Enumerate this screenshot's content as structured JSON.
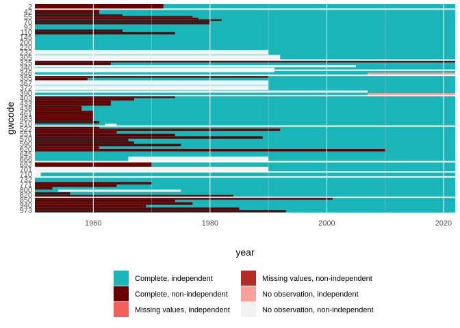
{
  "chart_data": {
    "type": "heatmap",
    "xlabel": "year",
    "ylabel": "gwcode",
    "xlim": [
      1950,
      2022
    ],
    "x_ticks": [
      "1960",
      "1980",
      "2000",
      "2020"
    ],
    "y_ticks": [
      "2",
      "42",
      "55",
      "70",
      "93",
      "110",
      "145",
      "200",
      "220",
      "232",
      "305",
      "325",
      "340",
      "346",
      "355",
      "367",
      "372",
      "390",
      "403",
      "433",
      "438",
      "461",
      "483",
      "510",
      "522",
      "551",
      "570",
      "590",
      "620",
      "645",
      "666",
      "692",
      "701",
      "710",
      "732",
      "771",
      "800",
      "820",
      "850",
      "940",
      "973"
    ],
    "legend": {
      "position": "bottom",
      "items": [
        {
          "label": "Complete, independent",
          "color": "#1ab5b8"
        },
        {
          "label": "Complete, non-independent",
          "color": "#6b0000"
        },
        {
          "label": "Missing values, independent",
          "color": "#f5605a"
        },
        {
          "label": "Missing values, non-independent",
          "color": "#b22b27"
        },
        {
          "label": "No observation, independent",
          "color": "#fba09b"
        },
        {
          "label": "No observation, non-independent",
          "color": "#f2f2f2"
        }
      ]
    },
    "background_status": "Complete, independent",
    "separators": [
      "2",
      "305",
      "340",
      "346",
      "390",
      "510",
      "666",
      "701",
      "710",
      "820"
    ],
    "segments": [
      {
        "code": "2",
        "start": 1950,
        "end": 1972,
        "status": "Complete, non-independent"
      },
      {
        "code": "42",
        "start": 1950,
        "end": 1961,
        "status": "Complete, non-independent"
      },
      {
        "code": "55",
        "start": 1950,
        "end": 1965,
        "status": "Complete, non-independent"
      },
      {
        "code": "55",
        "start": 1950,
        "end": 1977,
        "status": "Complete, non-independent"
      },
      {
        "code": "55",
        "start": 1950,
        "end": 1978,
        "status": "Complete, non-independent"
      },
      {
        "code": "70",
        "start": 1950,
        "end": 1982,
        "status": "Complete, non-independent"
      },
      {
        "code": "70",
        "start": 1950,
        "end": 1980,
        "status": "Complete, non-independent"
      },
      {
        "code": "70",
        "start": 1950,
        "end": 1980,
        "status": "Complete, non-independent"
      },
      {
        "code": "110",
        "start": 1950,
        "end": 1965,
        "status": "Complete, non-independent"
      },
      {
        "code": "110",
        "start": 1950,
        "end": 1974,
        "status": "Complete, non-independent"
      },
      {
        "code": "232",
        "start": 1950,
        "end": 1990,
        "status": "No observation, non-independent"
      },
      {
        "code": "305",
        "start": 1950,
        "end": 1992,
        "status": "No observation, non-independent"
      },
      {
        "code": "325",
        "start": 1950,
        "end": 2022,
        "status": "Complete, non-independent"
      },
      {
        "code": "325",
        "start": 1950,
        "end": 1963,
        "status": "Complete, non-independent"
      },
      {
        "code": "340",
        "start": 1950,
        "end": 2005,
        "status": "No observation, non-independent"
      },
      {
        "code": "340",
        "start": 1950,
        "end": 1991,
        "status": "No observation, non-independent"
      },
      {
        "code": "346",
        "start": 1950,
        "end": 1991,
        "status": "No observation, non-independent"
      },
      {
        "code": "346",
        "start": 2007,
        "end": 2022,
        "status": "No observation, independent"
      },
      {
        "code": "355",
        "start": 1950,
        "end": 1990,
        "status": "Complete, non-independent"
      },
      {
        "code": "355",
        "start": 1950,
        "end": 1959,
        "status": "Complete, non-independent"
      },
      {
        "code": "367",
        "start": 1950,
        "end": 1990,
        "status": "No observation, non-independent"
      },
      {
        "code": "372",
        "start": 1950,
        "end": 1990,
        "status": "No observation, non-independent"
      },
      {
        "code": "390",
        "start": 1950,
        "end": 2007,
        "status": "No observation, non-independent"
      },
      {
        "code": "390",
        "start": 2007,
        "end": 2022,
        "status": "No observation, independent"
      },
      {
        "code": "403",
        "start": 1950,
        "end": 1974,
        "status": "Complete, non-independent"
      },
      {
        "code": "403",
        "start": 1950,
        "end": 1967,
        "status": "Complete, non-independent"
      },
      {
        "code": "433",
        "start": 1950,
        "end": 1963,
        "status": "Complete, non-independent"
      },
      {
        "code": "438",
        "start": 1950,
        "end": 1958,
        "status": "Complete, non-independent"
      },
      {
        "code": "461",
        "start": 1950,
        "end": 1960,
        "status": "Complete, non-independent"
      },
      {
        "code": "483",
        "start": 1950,
        "end": 1960,
        "status": "Complete, non-independent"
      },
      {
        "code": "510",
        "start": 1950,
        "end": 1961,
        "status": "Complete, non-independent"
      },
      {
        "code": "510",
        "start": 1962,
        "end": 1964,
        "status": "No observation, non-independent"
      },
      {
        "code": "522",
        "start": 1950,
        "end": 1961,
        "status": "Complete, non-independent"
      },
      {
        "code": "522",
        "start": 1950,
        "end": 1992,
        "status": "Complete, non-independent"
      },
      {
        "code": "551",
        "start": 1950,
        "end": 1964,
        "status": "Complete, non-independent"
      },
      {
        "code": "551",
        "start": 1950,
        "end": 1974,
        "status": "Complete, non-independent"
      },
      {
        "code": "570",
        "start": 1950,
        "end": 1989,
        "status": "Complete, non-independent"
      },
      {
        "code": "570",
        "start": 1950,
        "end": 1966,
        "status": "Complete, non-independent"
      },
      {
        "code": "590",
        "start": 1950,
        "end": 1967,
        "status": "Complete, non-independent"
      },
      {
        "code": "590",
        "start": 1950,
        "end": 1975,
        "status": "Complete, non-independent"
      },
      {
        "code": "620",
        "start": 1950,
        "end": 1961,
        "status": "Complete, non-independent"
      },
      {
        "code": "620",
        "start": 1950,
        "end": 2010,
        "status": "Complete, non-independent"
      },
      {
        "code": "666",
        "start": 1966,
        "end": 1990,
        "status": "No observation, non-independent"
      },
      {
        "code": "692",
        "start": 1950,
        "end": 1970,
        "status": "Complete, non-independent"
      },
      {
        "code": "701",
        "start": 1950,
        "end": 1990,
        "status": "No observation, non-independent"
      },
      {
        "code": "710",
        "start": 1950,
        "end": 1951,
        "status": "No observation, non-independent"
      },
      {
        "code": "771",
        "start": 1950,
        "end": 1970,
        "status": "Complete, non-independent"
      },
      {
        "code": "771",
        "start": 1950,
        "end": 1964,
        "status": "Complete, non-independent"
      },
      {
        "code": "800",
        "start": 1950,
        "end": 1953,
        "status": "Complete, non-independent"
      },
      {
        "code": "800",
        "start": 1954,
        "end": 1975,
        "status": "No observation, non-independent"
      },
      {
        "code": "820",
        "start": 1950,
        "end": 1956,
        "status": "Complete, non-independent"
      },
      {
        "code": "820",
        "start": 1950,
        "end": 1984,
        "status": "Complete, non-independent"
      },
      {
        "code": "850",
        "start": 1950,
        "end": 2001,
        "status": "Complete, non-independent"
      },
      {
        "code": "850",
        "start": 1950,
        "end": 1974,
        "status": "Complete, non-independent"
      },
      {
        "code": "940",
        "start": 1950,
        "end": 1977,
        "status": "Complete, non-independent"
      },
      {
        "code": "940",
        "start": 1950,
        "end": 1969,
        "status": "Complete, non-independent"
      },
      {
        "code": "973",
        "start": 1950,
        "end": 1985,
        "status": "Complete, non-independent"
      },
      {
        "code": "973",
        "start": 1950,
        "end": 1993,
        "status": "Complete, non-independent"
      }
    ]
  }
}
